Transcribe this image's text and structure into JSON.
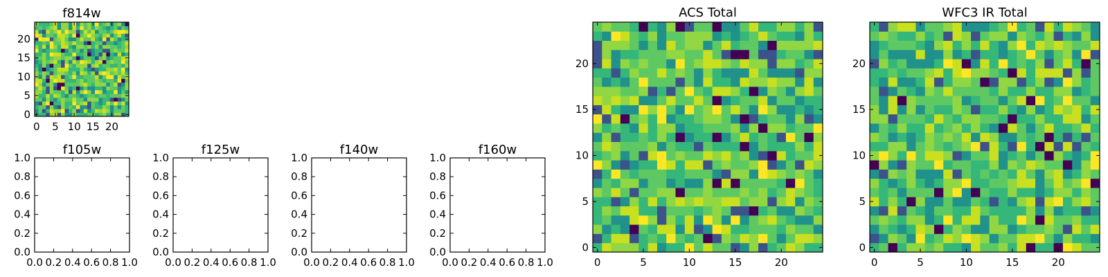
{
  "chart_data": [
    {
      "type": "heatmap",
      "title": "f814w",
      "xlim": [
        -0.5,
        24.5
      ],
      "ylim": [
        -0.5,
        24.5
      ],
      "grid_size": 25,
      "xticks": [
        0,
        5,
        10,
        15,
        20
      ],
      "yticks": [
        0,
        5,
        10,
        15,
        20
      ],
      "colormap": "viridis",
      "colors": [
        "#440154",
        "#3b528b",
        "#21918c",
        "#35b779",
        "#5ec962",
        "#90d743",
        "#c8e020",
        "#fde725"
      ],
      "seed": 11
    },
    {
      "type": "heatmap",
      "title": "f105w",
      "xlim": [
        0.0,
        1.0
      ],
      "ylim": [
        0.0,
        1.0
      ],
      "xticks": [
        0.0,
        0.2,
        0.4,
        0.6,
        0.8,
        1.0
      ],
      "yticks": [
        0.0,
        0.2,
        0.4,
        0.6,
        0.8,
        1.0
      ],
      "empty": true
    },
    {
      "type": "heatmap",
      "title": "f125w",
      "xlim": [
        0.0,
        1.0
      ],
      "ylim": [
        0.0,
        1.0
      ],
      "xticks": [
        0.0,
        0.2,
        0.4,
        0.6,
        0.8,
        1.0
      ],
      "yticks": [
        0.0,
        0.2,
        0.4,
        0.6,
        0.8,
        1.0
      ],
      "empty": true
    },
    {
      "type": "heatmap",
      "title": "f140w",
      "xlim": [
        0.0,
        1.0
      ],
      "ylim": [
        0.0,
        1.0
      ],
      "xticks": [
        0.0,
        0.2,
        0.4,
        0.6,
        0.8,
        1.0
      ],
      "yticks": [
        0.0,
        0.2,
        0.4,
        0.6,
        0.8,
        1.0
      ],
      "empty": true
    },
    {
      "type": "heatmap",
      "title": "f160w",
      "xlim": [
        0.0,
        1.0
      ],
      "ylim": [
        0.0,
        1.0
      ],
      "xticks": [
        0.0,
        0.2,
        0.4,
        0.6,
        0.8,
        1.0
      ],
      "yticks": [
        0.0,
        0.2,
        0.4,
        0.6,
        0.8,
        1.0
      ],
      "empty": true
    },
    {
      "type": "heatmap",
      "title": "ACS Total",
      "xlim": [
        -0.5,
        24.5
      ],
      "ylim": [
        -0.5,
        24.5
      ],
      "grid_size": 25,
      "xticks": [
        0,
        5,
        10,
        15,
        20
      ],
      "yticks": [
        0,
        5,
        10,
        15,
        20
      ],
      "colormap": "viridis",
      "colors": [
        "#440154",
        "#3b528b",
        "#21918c",
        "#35b779",
        "#5ec962",
        "#90d743",
        "#c8e020",
        "#fde725"
      ],
      "seed": 29
    },
    {
      "type": "heatmap",
      "title": "WFC3 IR Total",
      "xlim": [
        -0.5,
        24.5
      ],
      "ylim": [
        -0.5,
        24.5
      ],
      "grid_size": 25,
      "xticks": [
        0,
        5,
        10,
        15,
        20
      ],
      "yticks": [
        0,
        5,
        10,
        15,
        20
      ],
      "colormap": "viridis",
      "colors": [
        "#440154",
        "#3b528b",
        "#21918c",
        "#35b779",
        "#5ec962",
        "#90d743",
        "#c8e020",
        "#fde725"
      ],
      "seed": 47
    }
  ]
}
